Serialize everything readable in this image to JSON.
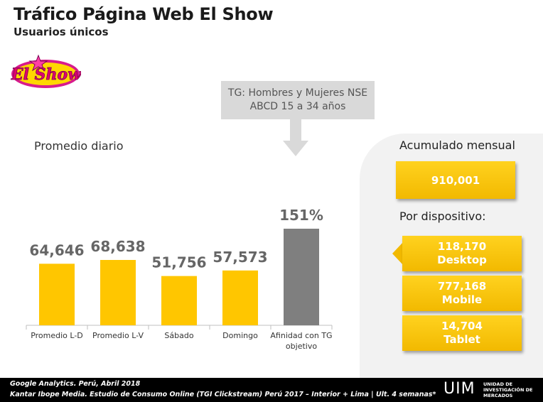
{
  "header": {
    "title": "Tráfico Página Web El Show",
    "subtitle": "Usuarios únicos",
    "logo_text": "El Show"
  },
  "tg_callout": {
    "line1": "TG: Hombres y Mujeres NSE",
    "line2": "ABCD 15 a 34 años"
  },
  "promedio_label": "Promedio diario",
  "chart_data": {
    "type": "bar",
    "categories": [
      "Promedio L-D",
      "Promedio L-V",
      "Sábado",
      "Domingo",
      "Afinidad con TG objetivo"
    ],
    "category_lines": [
      [
        "Promedio L-D"
      ],
      [
        "Promedio L-V"
      ],
      [
        "Sábado"
      ],
      [
        "Domingo"
      ],
      [
        "Afinidad con TG",
        "objetivo"
      ]
    ],
    "values": [
      64646,
      68638,
      51756,
      57573,
      151
    ],
    "value_labels": [
      "64,646",
      "68,638",
      "51,756",
      "57,573",
      "151%"
    ],
    "units": [
      "users",
      "users",
      "users",
      "users",
      "percent"
    ],
    "colors": [
      "#ffc600",
      "#ffc600",
      "#ffc600",
      "#ffc600",
      "#7f7f7f"
    ],
    "grid": false,
    "title": "",
    "xlabel": "",
    "ylabel": ""
  },
  "panel": {
    "acumulado_label": "Acumulado mensual",
    "acumulado_value": "910,001",
    "dispositivo_label": "Por dispositivo:",
    "devices": [
      {
        "value": "118,170",
        "name": "Desktop"
      },
      {
        "value": "777,168",
        "name": "Mobile"
      },
      {
        "value": "14,704",
        "name": "Tablet"
      }
    ]
  },
  "footer": {
    "source_1": "Google Analytics. Perú, Abril 2018",
    "source_2": "Kantar Ibope Media. Estudio de Consumo Online (TGI Clickstream) Perú 2017 – Interior + Lima | Ult. 4 semanas*",
    "brand": "UIM",
    "brand_sub": "UNIDAD DE INVESTIGACIÓN DE MERCADOS"
  },
  "colors": {
    "accent_gold": "#ffc600",
    "bar_gray": "#7f7f7f",
    "callout_gray": "#d9d9d9",
    "footer_black": "#000000"
  }
}
